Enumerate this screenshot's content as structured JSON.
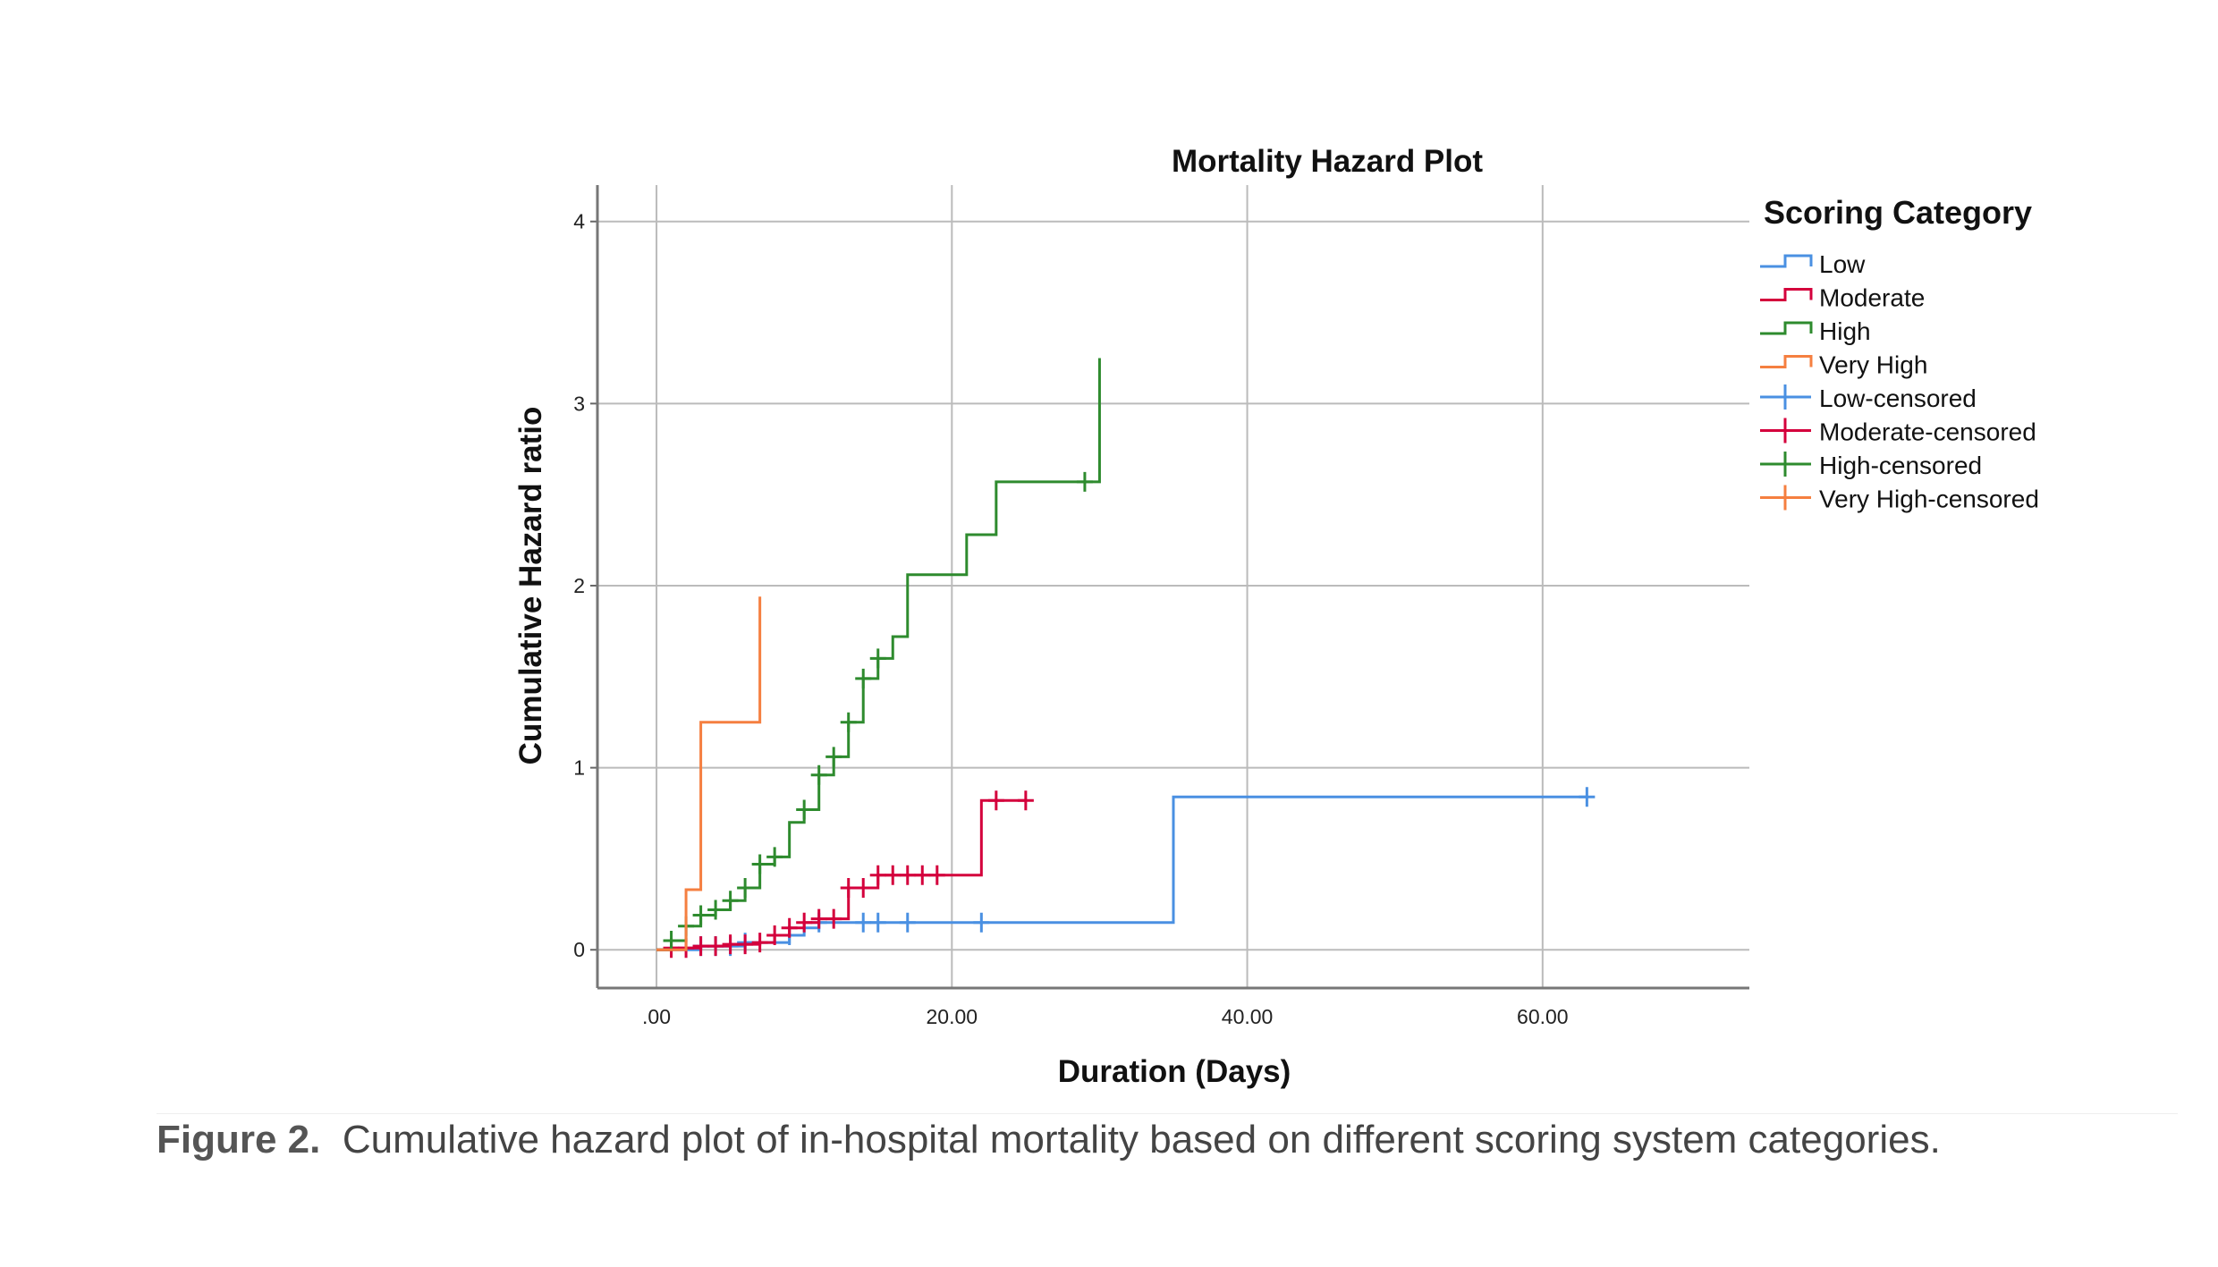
{
  "chart_data": {
    "type": "line",
    "subtype": "step",
    "title": "Mortality Hazard Plot",
    "xlabel": "Duration (Days)",
    "ylabel": "Cumulative Hazard ratio",
    "xlim": [
      -4,
      74
    ],
    "ylim": [
      -0.21,
      4.2
    ],
    "xticks": [
      0,
      20,
      40,
      60
    ],
    "xtick_labels": [
      ".00",
      "20.00",
      "40.00",
      "60.00"
    ],
    "yticks": [
      0,
      1,
      2,
      3,
      4
    ],
    "ytick_labels": [
      "0",
      "1",
      "2",
      "3",
      "4"
    ],
    "grid": true,
    "legend": {
      "title": "Scoring Category",
      "placement": "right",
      "entries": [
        "Low",
        "Moderate",
        "High",
        "Very High",
        "Low-censored",
        "Moderate-censored",
        "High-censored",
        "Very High-censored"
      ]
    },
    "series": [
      {
        "name": "Low",
        "color": "#4a90e2",
        "steps": [
          [
            0,
            0
          ],
          [
            3,
            0.02
          ],
          [
            6,
            0.04
          ],
          [
            9,
            0.08
          ],
          [
            10,
            0.12
          ],
          [
            11,
            0.15
          ],
          [
            35,
            0.84
          ]
        ],
        "end": 63,
        "censored": [
          3,
          4,
          5,
          6,
          9,
          11,
          14,
          15,
          17,
          22,
          63
        ]
      },
      {
        "name": "Moderate",
        "color": "#d4003c",
        "steps": [
          [
            0,
            0
          ],
          [
            1,
            0.01
          ],
          [
            3,
            0.02
          ],
          [
            5,
            0.03
          ],
          [
            7,
            0.04
          ],
          [
            8,
            0.08
          ],
          [
            9,
            0.12
          ],
          [
            10,
            0.15
          ],
          [
            11,
            0.17
          ],
          [
            13,
            0.34
          ],
          [
            15,
            0.41
          ],
          [
            22,
            0.82
          ]
        ],
        "end": 25,
        "censored": [
          1,
          2,
          3,
          4,
          5,
          6,
          7,
          8,
          9,
          10,
          11,
          12,
          13,
          14,
          15,
          16,
          17,
          18,
          19,
          23,
          25
        ]
      },
      {
        "name": "High",
        "color": "#2e8b2e",
        "steps": [
          [
            0,
            0
          ],
          [
            1,
            0.05
          ],
          [
            2,
            0.13
          ],
          [
            3,
            0.19
          ],
          [
            4,
            0.22
          ],
          [
            5,
            0.27
          ],
          [
            6,
            0.34
          ],
          [
            7,
            0.47
          ],
          [
            8,
            0.51
          ],
          [
            9,
            0.7
          ],
          [
            10,
            0.77
          ],
          [
            11,
            0.96
          ],
          [
            12,
            1.06
          ],
          [
            13,
            1.25
          ],
          [
            14,
            1.49
          ],
          [
            15,
            1.6
          ],
          [
            16,
            1.72
          ],
          [
            17,
            2.06
          ],
          [
            21,
            2.28
          ],
          [
            23,
            2.57
          ],
          [
            30,
            3.25
          ]
        ],
        "end": 30,
        "censored": [
          1,
          2,
          3,
          4,
          5,
          6,
          7,
          8,
          10,
          11,
          12,
          13,
          14,
          15,
          29
        ]
      },
      {
        "name": "Very High",
        "color": "#f57f40",
        "steps": [
          [
            0,
            0
          ],
          [
            2,
            0.33
          ],
          [
            3,
            1.25
          ],
          [
            7,
            1.94
          ]
        ],
        "end": 7,
        "censored": []
      }
    ]
  },
  "caption": {
    "label": "Figure 2.",
    "text": "Cumulative hazard plot of in-hospital mortality based on different scoring system categories."
  }
}
